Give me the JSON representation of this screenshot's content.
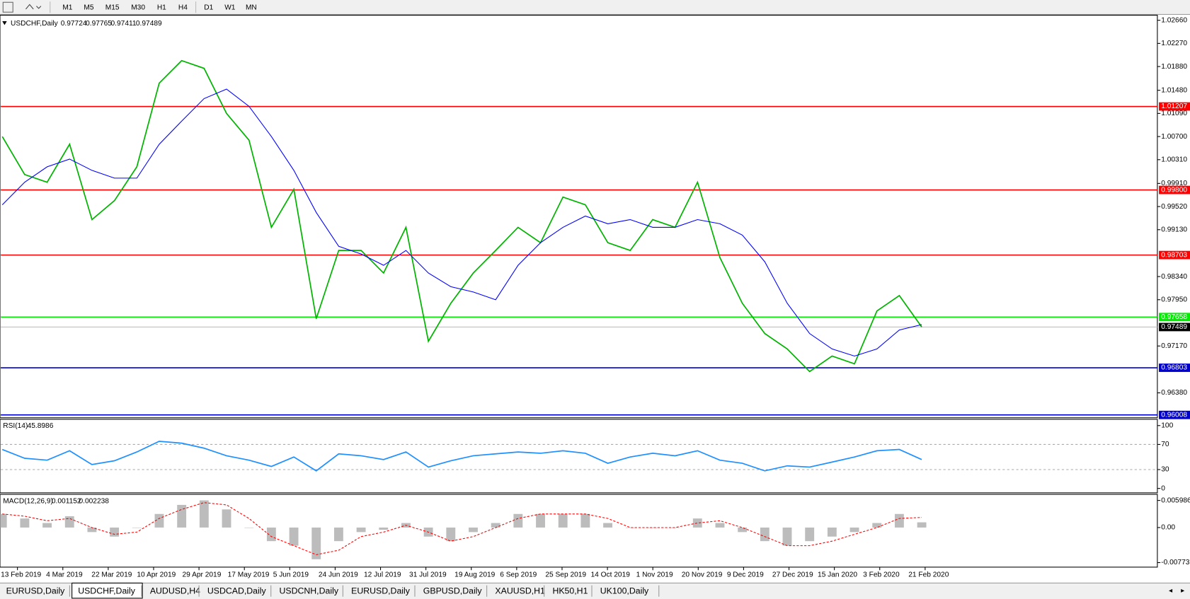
{
  "toolbar": {
    "timeframes": [
      "M1",
      "M5",
      "M15",
      "M30",
      "H1",
      "H4",
      "D1",
      "W1",
      "MN"
    ]
  },
  "tabs": {
    "items": [
      "EURUSD,Daily",
      "USDCHF,Daily",
      "AUDUSD,H4",
      "USDCAD,Daily",
      "USDCNH,Daily",
      "EURUSD,Daily",
      "GBPUSD,Daily",
      "XAUUSD,H1",
      "HK50,H1",
      "UK100,Daily"
    ]
  },
  "time_axis": {
    "labels": [
      "13 Feb 2019",
      "4 Mar 2019",
      "22 Mar 2019",
      "10 Apr 2019",
      "29 Apr 2019",
      "17 May 2019",
      "5 Jun 2019",
      "24 Jun 2019",
      "12 Jul 2019",
      "31 Jul 2019",
      "19 Aug 2019",
      "6 Sep 2019",
      "25 Sep 2019",
      "14 Oct 2019",
      "1 Nov 2019",
      "20 Nov 2019",
      "9 Dec 2019",
      "27 Dec 2019",
      "15 Jan 2020",
      "3 Feb 2020",
      "21 Feb 2020"
    ]
  },
  "chart_data": [
    {
      "type": "line",
      "title": "USDCHF,Daily",
      "ohlc": [
        0.97724,
        0.97765,
        0.97411,
        0.97489
      ],
      "ylim": [
        0.9596,
        1.0272
      ],
      "yticks": [
        {
          "value": 1.0266,
          "label": "1.02660"
        },
        {
          "value": 1.0227,
          "label": "1.02270"
        },
        {
          "value": 1.0188,
          "label": "1.01880"
        },
        {
          "value": 1.0148,
          "label": "1.01480"
        },
        {
          "value": 1.0109,
          "label": "1.01090"
        },
        {
          "value": 1.007,
          "label": "1.00700"
        },
        {
          "value": 1.0031,
          "label": "1.00310"
        },
        {
          "value": 0.9991,
          "label": "0.99910"
        },
        {
          "value": 0.9952,
          "label": "0.99520"
        },
        {
          "value": 0.9913,
          "label": "0.99130"
        },
        {
          "value": 0.9834,
          "label": "0.98340"
        },
        {
          "value": 0.9795,
          "label": "0.97950"
        },
        {
          "value": 0.9717,
          "label": "0.97170"
        },
        {
          "value": 0.9638,
          "label": "0.96380"
        }
      ],
      "levels": [
        {
          "value": 1.01207,
          "color": "#ff0000"
        },
        {
          "value": {
            "value": 0.998,
            "label": "0.99800"
          },
          "color": "#ff0000"
        },
        {
          "value": 0.98703,
          "color": "#ff0000"
        },
        {
          "value": 0.97658,
          "color": "#00ee00"
        },
        {
          "value": 0.96803,
          "color": "#0000cd"
        },
        {
          "value": 0.96008,
          "color": "#0000cd"
        }
      ],
      "current": {
        "value": 0.97489,
        "color": "#000000"
      },
      "series": [
        {
          "color": "#00b400",
          "values": [
            1.007,
            1.0006,
            0.9993,
            1.0057,
            0.993,
            0.9962,
            1.0019,
            1.016,
            1.0198,
            1.0185,
            1.0109,
            1.0064,
            0.9917,
            0.9981,
            0.9763,
            0.9878,
            0.9878,
            0.984,
            0.9917,
            0.9725,
            0.9789,
            0.984,
            0.9878,
            0.9917,
            0.9891,
            0.9968,
            0.9955,
            0.9891,
            0.9878,
            0.993,
            0.9917,
            0.9993,
            0.9866,
            0.9789,
            0.9738,
            0.9712,
            0.9674,
            0.97,
            0.9687,
            0.9776,
            0.9802,
            0.97489
          ]
        },
        {
          "color": "#0000ff",
          "values": [
            0.9955,
            0.9993,
            1.0019,
            1.0032,
            1.0013,
            1.0,
            1.0,
            1.0057,
            1.0096,
            1.0134,
            1.015,
            1.0121,
            1.007,
            1.0013,
            0.9942,
            0.9885,
            0.9872,
            0.9853,
            0.9878,
            0.984,
            0.9817,
            0.9808,
            0.9795,
            0.9853,
            0.9891,
            0.9917,
            0.9936,
            0.9923,
            0.993,
            0.9917,
            0.9917,
            0.993,
            0.9923,
            0.9904,
            0.9859,
            0.9789,
            0.9738,
            0.9712,
            0.97,
            0.9712,
            0.9744,
            0.9753
          ]
        }
      ]
    },
    {
      "type": "line",
      "title": "RSI(14)",
      "last": 45.8986,
      "ylim": [
        -7,
        110
      ],
      "yticks": [
        100,
        70,
        30,
        0
      ],
      "levels": [
        70,
        30
      ],
      "series": [
        {
          "color": "#1e90ff",
          "values": [
            62,
            48,
            45,
            60,
            38,
            44,
            58,
            75,
            72,
            64,
            52,
            45,
            35,
            50,
            28,
            55,
            52,
            46,
            58,
            34,
            44,
            52,
            55,
            58,
            56,
            60,
            56,
            40,
            50,
            56,
            52,
            60,
            45,
            40,
            28,
            36,
            34,
            42,
            50,
            60,
            62,
            45.9
          ]
        }
      ]
    },
    {
      "type": "macd",
      "title": "MACD(12,26,9)",
      "last": [
        0.001152,
        0.002238
      ],
      "ylim": [
        -0.00874,
        0.00716
      ],
      "yticks": [
        0.005986,
        {
          "value": 0,
          "label": "0.00"
        },
        -0.007737
      ],
      "histogram": {
        "color": "#a0a0a0",
        "values": [
          0.003,
          0.002,
          0.001,
          0.0025,
          -0.001,
          -0.002,
          0.0,
          0.003,
          0.005,
          0.006,
          0.004,
          0.0,
          -0.003,
          -0.004,
          -0.007,
          -0.003,
          -0.001,
          -0.0005,
          0.001,
          -0.002,
          -0.003,
          -0.001,
          0.001,
          0.003,
          0.003,
          0.003,
          0.003,
          0.001,
          0.0,
          0.0,
          0.0,
          0.002,
          0.001,
          -0.001,
          -0.003,
          -0.004,
          -0.003,
          -0.002,
          -0.001,
          0.001,
          0.003,
          0.001152
        ]
      },
      "signal": {
        "color": "#ff0000",
        "values": [
          0.003,
          0.0025,
          0.0015,
          0.002,
          0.0,
          -0.0015,
          -0.001,
          0.002,
          0.004,
          0.0055,
          0.005,
          0.002,
          -0.002,
          -0.004,
          -0.006,
          -0.005,
          -0.002,
          -0.001,
          0.0005,
          -0.001,
          -0.003,
          -0.002,
          0.0,
          0.002,
          0.003,
          0.003,
          0.003,
          0.002,
          0.0,
          0.0,
          0.0,
          0.001,
          0.0015,
          0.0,
          -0.002,
          -0.004,
          -0.004,
          -0.003,
          -0.0015,
          0.0,
          0.002,
          0.002238
        ]
      }
    }
  ]
}
